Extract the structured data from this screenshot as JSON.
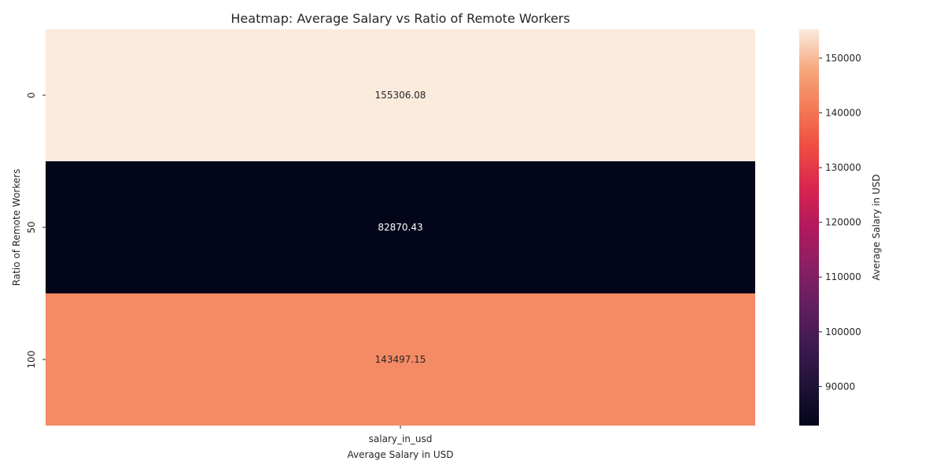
{
  "chart_data": {
    "type": "heatmap",
    "title": "Heatmap: Average Salary vs Ratio of Remote Workers",
    "xlabel": "Average Salary in USD",
    "ylabel": "Ratio of Remote Workers",
    "x_categories": [
      "salary_in_usd"
    ],
    "y_categories": [
      "0",
      "50",
      "100"
    ],
    "values": [
      [
        155306.08
      ],
      [
        82870.43
      ],
      [
        143497.15
      ]
    ],
    "value_labels": [
      "155306.08",
      "82870.43",
      "143497.15"
    ],
    "colorbar": {
      "label": "Average Salary in USD",
      "range": [
        82870.43,
        155306.08
      ],
      "ticks": [
        90000,
        100000,
        110000,
        120000,
        130000,
        140000,
        150000
      ],
      "tick_labels": [
        "90000",
        "100000",
        "110000",
        "120000",
        "130000",
        "140000",
        "150000"
      ],
      "colormap": "rocket"
    },
    "grid": false
  }
}
